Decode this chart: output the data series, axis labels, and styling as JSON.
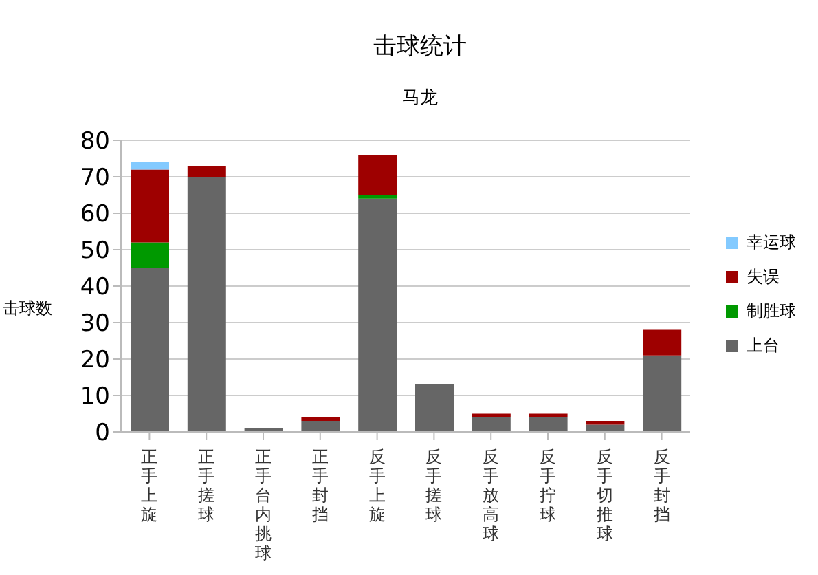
{
  "chart_data": {
    "type": "bar",
    "title": "击球统计",
    "subtitle": "马龙",
    "ylabel": "击球数",
    "categories": [
      "正手上旋",
      "正手搓球",
      "正手台内挑球",
      "正手封挡",
      "反手上旋",
      "反手搓球",
      "反手放高球",
      "反手拧球",
      "反手切推球",
      "反手封挡"
    ],
    "stacked": true,
    "series": [
      {
        "name": "上台",
        "color": "#666666",
        "values": [
          45,
          70,
          1,
          3,
          64,
          13,
          4,
          4,
          2,
          21
        ]
      },
      {
        "name": "制胜球",
        "color": "#009900",
        "values": [
          7,
          0,
          0,
          0,
          1,
          0,
          0,
          0,
          0,
          0
        ]
      },
      {
        "name": "失误",
        "color": "#9e0000",
        "values": [
          20,
          3,
          0,
          1,
          11,
          0,
          1,
          1,
          1,
          7
        ]
      },
      {
        "name": "幸运球",
        "color": "#83caff",
        "values": [
          2,
          0,
          0,
          0,
          0,
          0,
          0,
          0,
          0,
          0
        ]
      }
    ],
    "ylim": [
      0,
      80
    ],
    "yticks": [
      0,
      10,
      20,
      30,
      40,
      50,
      60,
      70,
      80
    ],
    "grid": "y",
    "legend": "right"
  }
}
